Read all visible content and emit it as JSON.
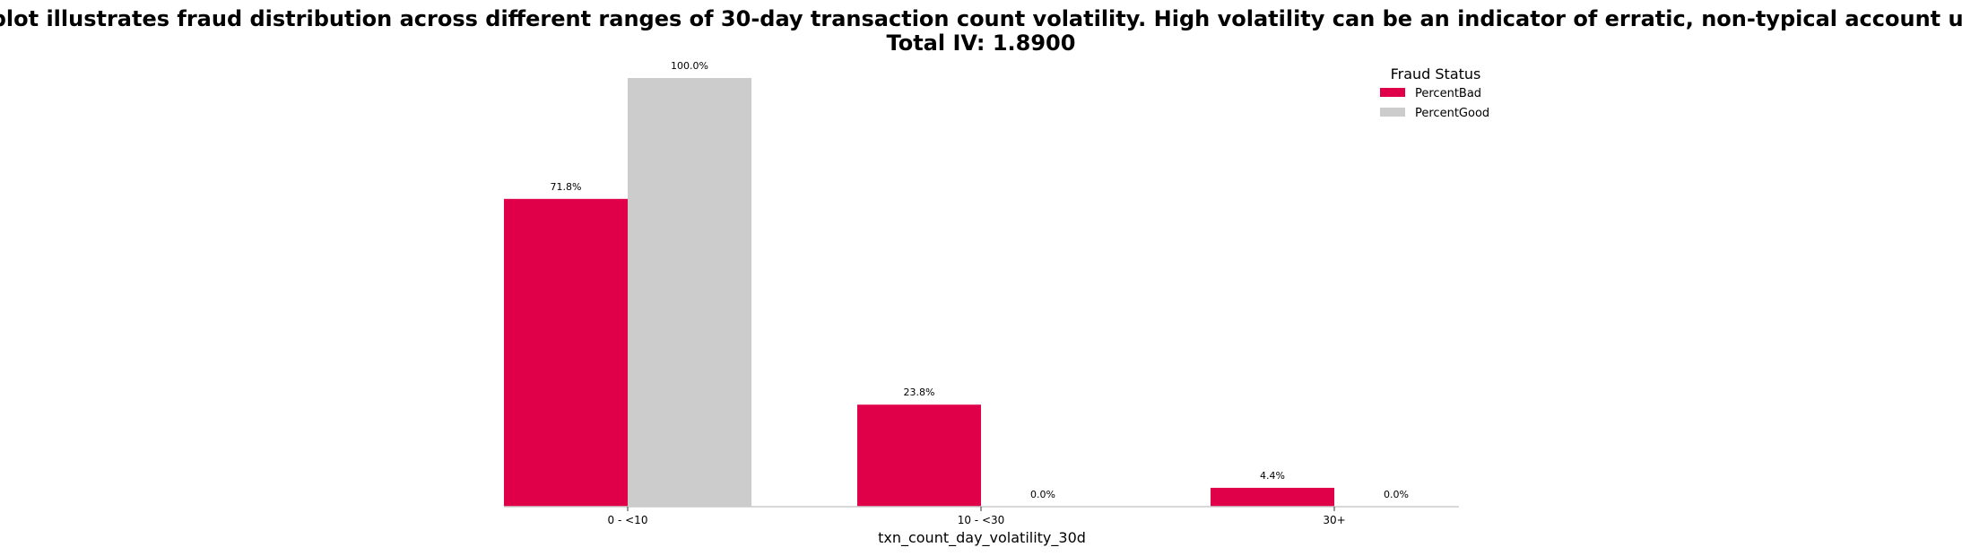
{
  "chart_data": {
    "type": "bar",
    "title": "This plot illustrates fraud distribution across different ranges of 30-day transaction count volatility. High volatility can be an indicator of erratic, non-typical account usage.",
    "subtitle": "Total IV: 1.8900",
    "xlabel": "txn_count_day_volatility_30d",
    "ylabel": "",
    "categories": [
      "0 - <10",
      "10 - <30",
      "30+"
    ],
    "series": [
      {
        "name": "PercentBad",
        "values": [
          71.8,
          23.8,
          4.4
        ],
        "labels": [
          "71.8%",
          "23.8%",
          "4.4%"
        ],
        "color": "#e0004a"
      },
      {
        "name": "PercentGood",
        "values": [
          100.0,
          0.0,
          0.0
        ],
        "labels": [
          "100.0%",
          "0.0%",
          "0.0%"
        ],
        "color": "#cccccc"
      }
    ],
    "ylim": [
      0,
      100
    ],
    "grid": false,
    "legend": {
      "title": "Fraud Status",
      "placement": "top-right"
    }
  }
}
